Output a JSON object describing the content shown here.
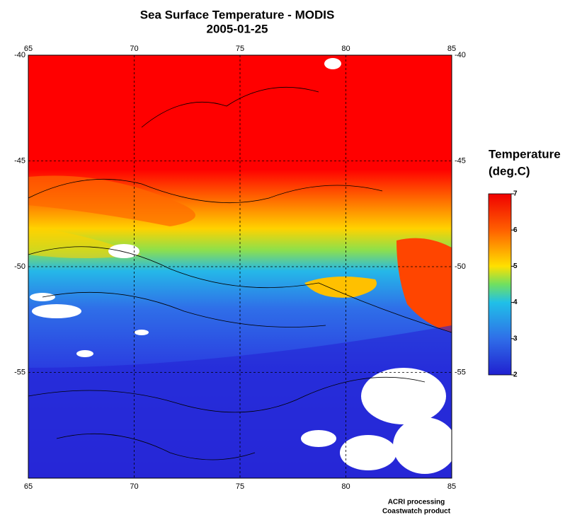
{
  "title": "Sea Surface Temperature - MODIS",
  "subtitle": "2005-01-25",
  "map": {
    "xlim": [
      65,
      85
    ],
    "ylim": [
      -40,
      -60
    ],
    "xticks": [
      65,
      70,
      75,
      80,
      85
    ],
    "yticks": [
      -40,
      -45,
      -50,
      -55
    ]
  },
  "colorbar": {
    "title_lines": [
      "Temperature",
      "(deg.C)"
    ],
    "range": [
      2,
      7
    ],
    "ticks": [
      2,
      3,
      4,
      5,
      6,
      7
    ]
  },
  "credits": [
    "ACRI processing",
    "Coastwatch product"
  ]
}
